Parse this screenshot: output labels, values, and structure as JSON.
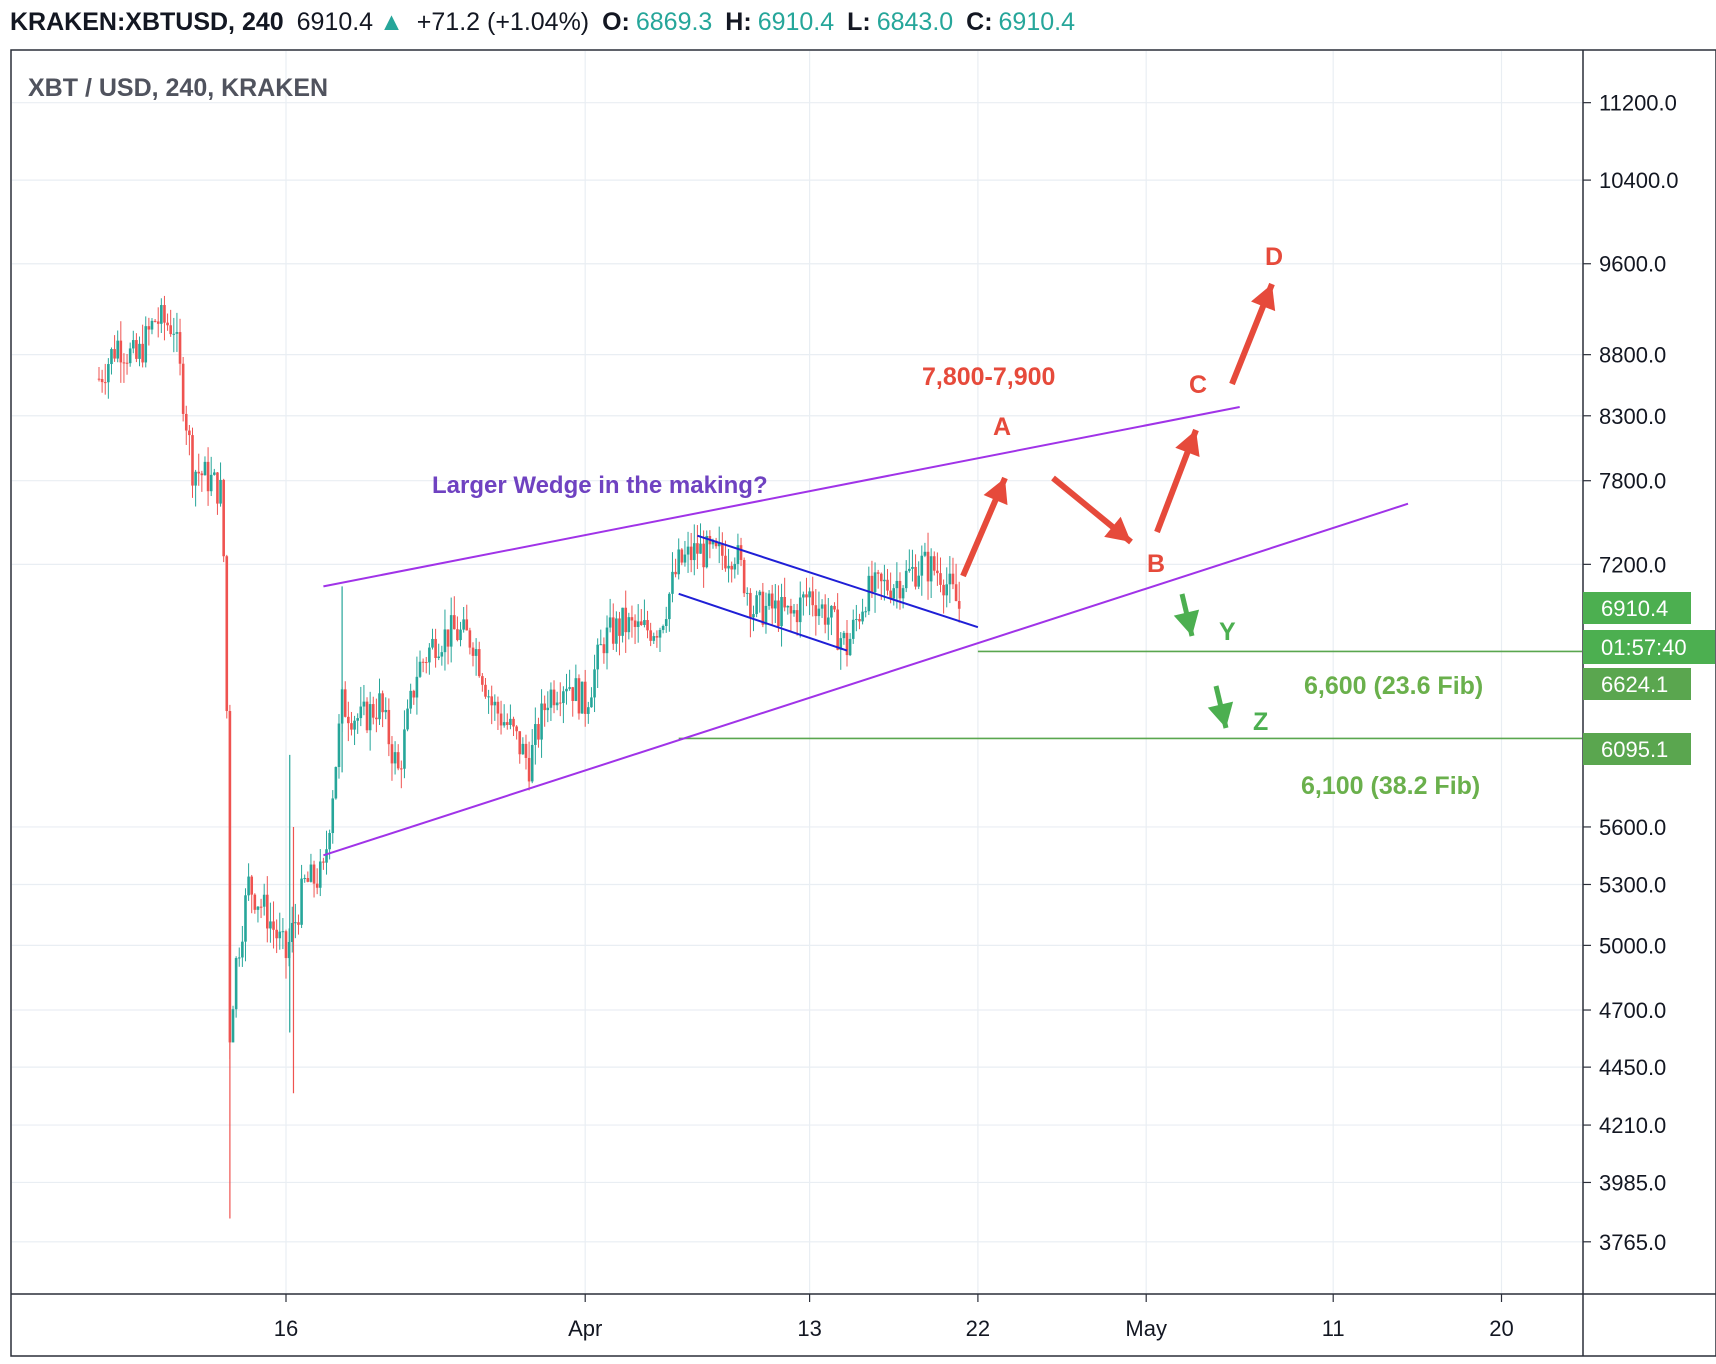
{
  "header": {
    "symbol": "KRAKEN:XBTUSD, 240",
    "last": "6910.4",
    "change": "+71.2 (+1.04%)",
    "o_label": "O:",
    "o_value": "6869.3",
    "h_label": "H:",
    "h_value": "6910.4",
    "l_label": "L:",
    "l_value": "6843.0",
    "c_label": "C:",
    "c_value": "6910.4"
  },
  "chart_data": {
    "type": "candlestick",
    "title": "XBT / USD, 240, KRAKEN",
    "scale": "log",
    "ylim": [
      3700,
      11600
    ],
    "y_ticks": [
      "11200.0",
      "10400.0",
      "9600.0",
      "8800.0",
      "8300.0",
      "7800.0",
      "7200.0",
      "5600.0",
      "5300.0",
      "5000.0",
      "4700.0",
      "4450.0",
      "4210.0",
      "3985.0",
      "3765.0"
    ],
    "x_ticks": [
      "16",
      "Apr",
      "13",
      "22",
      "May",
      "11",
      "20"
    ],
    "price_tags": [
      {
        "label": "6910.4",
        "color": "#4caf50"
      },
      {
        "label": "01:57:40",
        "color": "#4caf50"
      },
      {
        "label": "6624.1",
        "color": "#5aa64f"
      },
      {
        "label": "6095.1",
        "color": "#5aa64f"
      }
    ],
    "horizontal_levels": [
      6624.1,
      6095.1
    ],
    "price_path": [
      {
        "x": "Mar 6",
        "y": 8600
      },
      {
        "x": "Mar 7",
        "y": 8900
      },
      {
        "x": "Mar 8",
        "y": 8750
      },
      {
        "x": "Mar 9",
        "y": 9100
      },
      {
        "x": "Mar 10",
        "y": 9050
      },
      {
        "x": "Mar 11",
        "y": 7900
      },
      {
        "x": "Mar 12",
        "y": 7800
      },
      {
        "x": "Mar 12.6",
        "y": 7700
      },
      {
        "x": "Mar 12.9",
        "y": 5900
      },
      {
        "x": "Mar 13",
        "y": 4600
      },
      {
        "x": "Mar 13.3",
        "y": 4900
      },
      {
        "x": "Mar 14",
        "y": 5300
      },
      {
        "x": "Mar 15",
        "y": 5150
      },
      {
        "x": "Mar 16",
        "y": 4950
      },
      {
        "x": "Mar 17",
        "y": 5300
      },
      {
        "x": "Mar 18",
        "y": 5350
      },
      {
        "x": "Mar 19",
        "y": 6300
      },
      {
        "x": "Mar 20",
        "y": 6200
      },
      {
        "x": "Mar 21",
        "y": 6300
      },
      {
        "x": "Mar 22",
        "y": 5900
      },
      {
        "x": "Mar 23",
        "y": 6500
      },
      {
        "x": "Mar 24",
        "y": 6700
      },
      {
        "x": "Mar 25",
        "y": 6750
      },
      {
        "x": "Mar 26",
        "y": 6700
      },
      {
        "x": "Mar 27",
        "y": 6300
      },
      {
        "x": "Mar 28",
        "y": 6150
      },
      {
        "x": "Mar 29",
        "y": 5950
      },
      {
        "x": "Mar 30",
        "y": 6350
      },
      {
        "x": "Mar 31",
        "y": 6450
      },
      {
        "x": "Apr 1",
        "y": 6300
      },
      {
        "x": "Apr 2",
        "y": 6700
      },
      {
        "x": "Apr 3",
        "y": 6800
      },
      {
        "x": "Apr 4",
        "y": 6750
      },
      {
        "x": "Apr 5",
        "y": 6800
      },
      {
        "x": "Apr 6",
        "y": 7200
      },
      {
        "x": "Apr 7",
        "y": 7300
      },
      {
        "x": "Apr 8",
        "y": 7250
      },
      {
        "x": "Apr 9",
        "y": 7300
      },
      {
        "x": "Apr 10",
        "y": 6900
      },
      {
        "x": "Apr 11",
        "y": 6900
      },
      {
        "x": "Apr 12",
        "y": 6850
      },
      {
        "x": "Apr 13",
        "y": 7000
      },
      {
        "x": "Apr 14",
        "y": 6850
      },
      {
        "x": "Apr 15",
        "y": 6650
      },
      {
        "x": "Apr 16",
        "y": 7000
      },
      {
        "x": "Apr 17",
        "y": 7050
      },
      {
        "x": "Apr 18",
        "y": 7100
      },
      {
        "x": "Apr 19",
        "y": 7200
      },
      {
        "x": "Apr 20",
        "y": 7150
      },
      {
        "x": "Apr 21",
        "y": 6910
      }
    ],
    "trend_lines": [
      {
        "name": "wedge-upper",
        "color": "#a033e8",
        "from": {
          "x": "Mar 18",
          "y": 7050
        },
        "to": {
          "x": "May 6",
          "y": 8370
        }
      },
      {
        "name": "wedge-lower",
        "color": "#a033e8",
        "from": {
          "x": "Mar 18",
          "y": 5450
        },
        "to": {
          "x": "May 15",
          "y": 7630
        }
      },
      {
        "name": "channel-upper",
        "color": "#1f1fd6",
        "from": {
          "x": "Apr 7",
          "y": 7400
        },
        "to": {
          "x": "Apr 22",
          "y": 6780
        }
      },
      {
        "name": "channel-lower",
        "color": "#1f1fd6",
        "from": {
          "x": "Apr 6",
          "y": 7000
        },
        "to": {
          "x": "Apr 15",
          "y": 6630
        }
      }
    ],
    "annotations": [
      {
        "text": "Larger Wedge in the making?",
        "color": "#6f42c1"
      },
      {
        "text": "7,800-7,900",
        "color": "#e64a3b"
      },
      {
        "text": "A",
        "color": "#e64a3b"
      },
      {
        "text": "B",
        "color": "#e64a3b"
      },
      {
        "text": "C",
        "color": "#e64a3b"
      },
      {
        "text": "D",
        "color": "#e64a3b"
      },
      {
        "text": "Y",
        "color": "#4caf50"
      },
      {
        "text": "Z",
        "color": "#4caf50"
      },
      {
        "text": "6,600 (23.6 Fib)",
        "color": "#6ab04c"
      },
      {
        "text": "6,100 (38.2 Fib)",
        "color": "#6ab04c"
      }
    ],
    "grid": true,
    "colors": {
      "up": "#26a69a",
      "down": "#ef5350",
      "wedge": "#a033e8",
      "channel": "#1f1fd6",
      "arrow_red": "#e64a3b",
      "arrow_green": "#4caf50",
      "fib": "#6ab04c"
    }
  }
}
